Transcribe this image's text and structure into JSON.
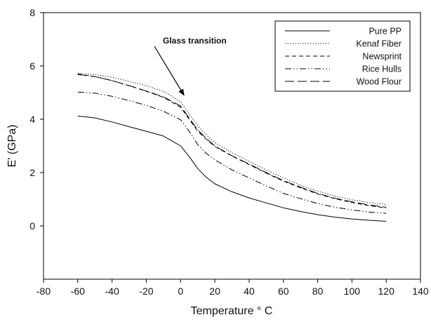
{
  "chart_data": {
    "type": "line",
    "title": "",
    "xlabel": "Temperature ° C",
    "ylabel": "E' (GPa)",
    "xlim": [
      -80,
      140
    ],
    "ylim": [
      -2,
      8
    ],
    "xticks": [
      -80,
      -60,
      -40,
      -20,
      0,
      20,
      40,
      60,
      80,
      100,
      120,
      140
    ],
    "yticks": [
      0,
      2,
      4,
      6,
      8
    ],
    "grid": false,
    "legend_position": "top-right",
    "x": [
      -60,
      -50,
      -40,
      -30,
      -20,
      -10,
      0,
      5,
      10,
      15,
      20,
      30,
      40,
      50,
      60,
      70,
      80,
      90,
      100,
      110,
      120
    ],
    "series": [
      {
        "name": "Pure PP",
        "style": "solid",
        "values": [
          4.12,
          4.05,
          3.9,
          3.72,
          3.55,
          3.37,
          3.0,
          2.6,
          2.15,
          1.82,
          1.58,
          1.28,
          1.05,
          0.86,
          0.68,
          0.54,
          0.42,
          0.33,
          0.26,
          0.21,
          0.17
        ]
      },
      {
        "name": "Kenaf Fiber",
        "style": "dotted",
        "values": [
          5.72,
          5.68,
          5.58,
          5.42,
          5.26,
          5.05,
          4.65,
          4.2,
          3.75,
          3.42,
          3.12,
          2.75,
          2.42,
          2.1,
          1.8,
          1.52,
          1.3,
          1.12,
          0.98,
          0.88,
          0.8
        ]
      },
      {
        "name": "Newsprint",
        "style": "dashed",
        "values": [
          5.7,
          5.6,
          5.45,
          5.26,
          5.05,
          4.82,
          4.45,
          4.0,
          3.55,
          3.25,
          2.98,
          2.62,
          2.3,
          1.98,
          1.68,
          1.43,
          1.2,
          1.02,
          0.88,
          0.76,
          0.67
        ]
      },
      {
        "name": "Rice Hulls",
        "style": "dash-dot-dot",
        "values": [
          5.02,
          4.98,
          4.86,
          4.7,
          4.52,
          4.3,
          3.98,
          3.55,
          3.05,
          2.72,
          2.48,
          2.1,
          1.8,
          1.5,
          1.22,
          1.02,
          0.84,
          0.7,
          0.6,
          0.52,
          0.47
        ]
      },
      {
        "name": "Wood Flour",
        "style": "long-dash",
        "values": [
          5.68,
          5.6,
          5.45,
          5.26,
          5.06,
          4.84,
          4.5,
          4.05,
          3.6,
          3.28,
          3.0,
          2.63,
          2.32,
          2.0,
          1.7,
          1.45,
          1.22,
          1.04,
          0.9,
          0.79,
          0.7
        ]
      }
    ],
    "annotations": [
      {
        "text": "Glass transition",
        "arrow_to": {
          "x": 2,
          "y": 4.9
        }
      }
    ]
  }
}
